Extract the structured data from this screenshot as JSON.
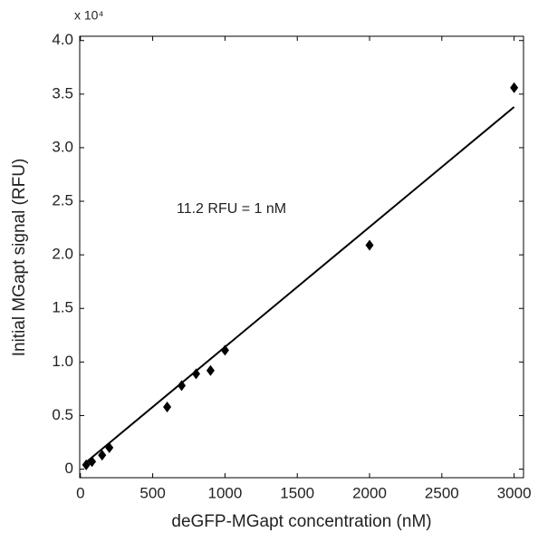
{
  "chart_data": {
    "type": "scatter",
    "x_label": "deGFP-MGapt concentration (nM)",
    "y_label": "Initial MGapt signal (RFU)",
    "y_multiplier": "x 10⁴",
    "annotation": "11.2 RFU = 1 nM",
    "xlim": [
      -5,
      3065
    ],
    "ylim": [
      -0.08,
      4.04
    ],
    "xticks": [
      0,
      500,
      1000,
      1500,
      2000,
      2500,
      3000
    ],
    "yticks": [
      0,
      0.5,
      {
        "value": 1,
        "label": "1.0"
      },
      1.5,
      {
        "value": 2,
        "label": "2.0"
      },
      2.5,
      {
        "value": 3,
        "label": "3.0"
      },
      3.5,
      {
        "value": 4,
        "label": "4.0"
      }
    ],
    "series": [
      {
        "type": "scatter",
        "color": "#000000",
        "x": [
          40,
          80,
          150,
          200,
          600,
          700,
          800,
          900,
          1000,
          2000,
          3000
        ],
        "values": [
          0.04,
          0.07,
          0.13,
          0.2,
          0.58,
          0.78,
          0.89,
          0.92,
          1.11,
          2.09,
          3.56
        ]
      },
      {
        "type": "line",
        "color": "#000000",
        "x": [
          30,
          3000
        ],
        "values": [
          0.054,
          3.38
        ]
      }
    ]
  }
}
